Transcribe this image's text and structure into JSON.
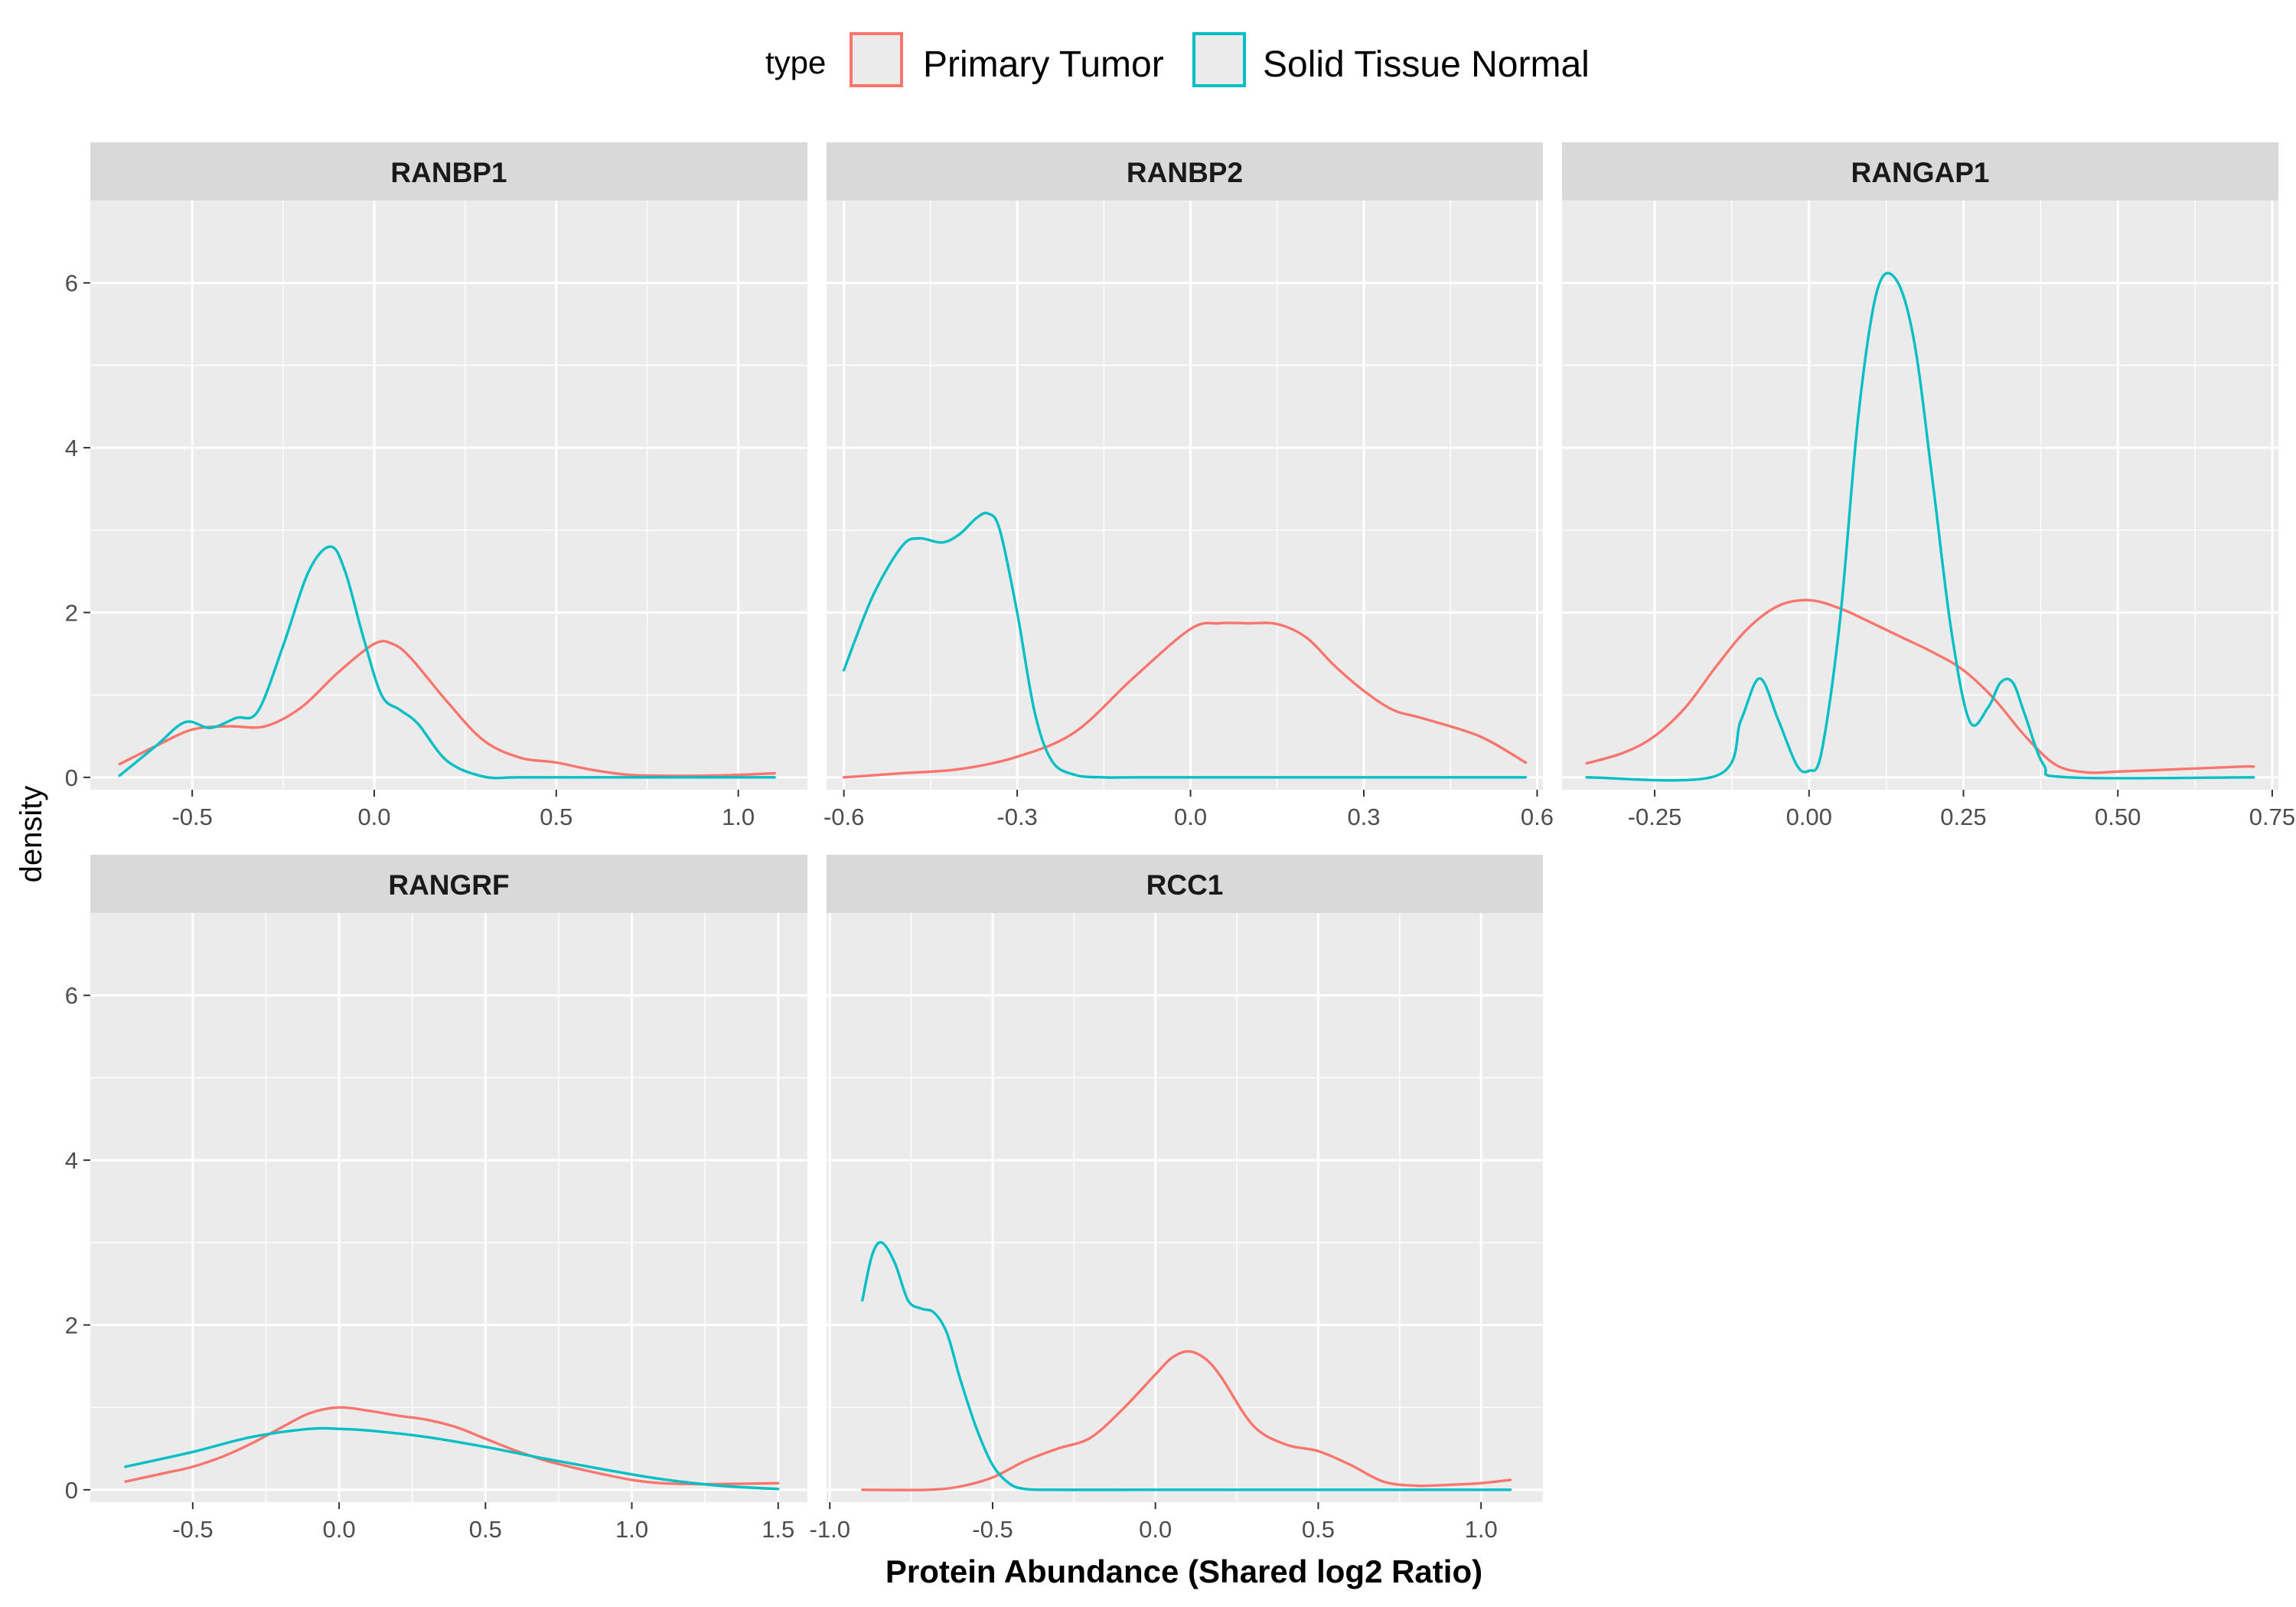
{
  "legend": {
    "title": "type",
    "items": [
      {
        "label": "Primary Tumor",
        "color": "#F8766D"
      },
      {
        "label": "Solid Tissue Normal",
        "color": "#00BFC4"
      }
    ]
  },
  "axes": {
    "xlabel": "Protein Abundance (Shared log2 Ratio)",
    "ylabel": "density"
  },
  "chart_data": {
    "type": "line",
    "subtype": "faceted density plot",
    "ylim": [
      -0.15,
      7.0
    ],
    "yticks": [
      0,
      2,
      4,
      6
    ],
    "grid": true,
    "legend_position": "top",
    "facets": [
      {
        "title": "RANBP1",
        "xlim": [
          -0.78,
          1.19
        ],
        "xticks": [
          -0.5,
          0.0,
          0.5,
          1.0
        ],
        "xtick_labels": [
          "-0.5",
          "0.0",
          "0.5",
          "1.0"
        ],
        "series": [
          {
            "name": "Primary Tumor",
            "x": [
              -0.7,
              -0.6,
              -0.5,
              -0.4,
              -0.3,
              -0.2,
              -0.1,
              0.0,
              0.05,
              0.1,
              0.2,
              0.3,
              0.4,
              0.5,
              0.6,
              0.7,
              0.8,
              0.9,
              1.0,
              1.1
            ],
            "y": [
              0.16,
              0.38,
              0.58,
              0.62,
              0.62,
              0.85,
              1.27,
              1.62,
              1.62,
              1.45,
              0.92,
              0.45,
              0.24,
              0.18,
              0.09,
              0.03,
              0.02,
              0.02,
              0.03,
              0.05
            ]
          },
          {
            "name": "Solid Tissue Normal",
            "x": [
              -0.7,
              -0.6,
              -0.52,
              -0.45,
              -0.38,
              -0.32,
              -0.25,
              -0.18,
              -0.12,
              -0.08,
              -0.03,
              0.02,
              0.07,
              0.12,
              0.2,
              0.3,
              0.4,
              0.6,
              0.8,
              1.1
            ],
            "y": [
              0.02,
              0.38,
              0.67,
              0.6,
              0.72,
              0.8,
              1.6,
              2.5,
              2.8,
              2.5,
              1.7,
              1.0,
              0.82,
              0.65,
              0.2,
              0.01,
              0.0,
              0.0,
              0.0,
              0.0
            ]
          }
        ]
      },
      {
        "title": "RANBP2",
        "xlim": [
          -0.63,
          0.61
        ],
        "xticks": [
          -0.6,
          -0.3,
          0.0,
          0.3,
          0.6
        ],
        "xtick_labels": [
          "-0.6",
          "-0.3",
          "0.0",
          "0.3",
          "0.6"
        ],
        "series": [
          {
            "name": "Primary Tumor",
            "x": [
              -0.6,
              -0.5,
              -0.4,
              -0.3,
              -0.2,
              -0.1,
              0.0,
              0.05,
              0.1,
              0.15,
              0.2,
              0.25,
              0.3,
              0.35,
              0.4,
              0.5,
              0.58
            ],
            "y": [
              0.0,
              0.05,
              0.1,
              0.25,
              0.55,
              1.2,
              1.8,
              1.87,
              1.87,
              1.86,
              1.7,
              1.35,
              1.05,
              0.82,
              0.72,
              0.5,
              0.18
            ]
          },
          {
            "name": "Solid Tissue Normal",
            "x": [
              -0.6,
              -0.55,
              -0.5,
              -0.47,
              -0.43,
              -0.4,
              -0.37,
              -0.35,
              -0.33,
              -0.3,
              -0.27,
              -0.24,
              -0.2,
              -0.15,
              -0.1,
              0.0,
              0.3,
              0.58
            ],
            "y": [
              1.3,
              2.2,
              2.8,
              2.9,
              2.85,
              2.95,
              3.15,
              3.2,
              3.0,
              2.0,
              0.8,
              0.2,
              0.03,
              0.0,
              0.0,
              0.0,
              0.0,
              0.0
            ]
          }
        ]
      },
      {
        "title": "RANGAP1",
        "xlim": [
          -0.4,
          0.76
        ],
        "xticks": [
          -0.25,
          0.0,
          0.25,
          0.5,
          0.75
        ],
        "xtick_labels": [
          "-0.25",
          "0.00",
          "0.25",
          "0.50",
          "0.75"
        ],
        "series": [
          {
            "name": "Primary Tumor",
            "x": [
              -0.36,
              -0.3,
              -0.25,
              -0.2,
              -0.15,
              -0.1,
              -0.05,
              0.0,
              0.05,
              0.1,
              0.15,
              0.2,
              0.25,
              0.3,
              0.35,
              0.4,
              0.45,
              0.5,
              0.6,
              0.7,
              0.72
            ],
            "y": [
              0.17,
              0.3,
              0.5,
              0.85,
              1.35,
              1.8,
              2.08,
              2.15,
              2.05,
              1.88,
              1.7,
              1.52,
              1.3,
              0.95,
              0.5,
              0.15,
              0.06,
              0.07,
              0.1,
              0.13,
              0.13
            ]
          },
          {
            "name": "Solid Tissue Normal",
            "x": [
              -0.36,
              -0.15,
              -0.11,
              -0.08,
              -0.05,
              -0.02,
              0.0,
              0.02,
              0.05,
              0.08,
              0.11,
              0.14,
              0.17,
              0.2,
              0.23,
              0.26,
              0.29,
              0.31,
              0.33,
              0.35,
              0.38,
              0.42,
              0.72
            ],
            "y": [
              0.0,
              0.02,
              0.7,
              1.2,
              0.7,
              0.15,
              0.08,
              0.3,
              1.9,
              4.4,
              5.9,
              6.05,
              5.3,
              3.6,
              1.8,
              0.68,
              0.85,
              1.15,
              1.15,
              0.75,
              0.15,
              0.0,
              0.0
            ]
          }
        ]
      },
      {
        "title": "RANGRF",
        "xlim": [
          -0.85,
          1.6
        ],
        "xticks": [
          -0.5,
          0.0,
          0.5,
          1.0,
          1.5
        ],
        "xtick_labels": [
          "-0.5",
          "0.0",
          "0.5",
          "1.0",
          "1.5"
        ],
        "series": [
          {
            "name": "Primary Tumor",
            "x": [
              -0.73,
              -0.6,
              -0.5,
              -0.4,
              -0.3,
              -0.2,
              -0.1,
              0.0,
              0.1,
              0.2,
              0.3,
              0.4,
              0.5,
              0.6,
              0.7,
              0.8,
              0.9,
              1.0,
              1.1,
              1.2,
              1.3,
              1.5
            ],
            "y": [
              0.1,
              0.2,
              0.28,
              0.4,
              0.56,
              0.75,
              0.93,
              1.0,
              0.96,
              0.9,
              0.85,
              0.76,
              0.62,
              0.48,
              0.36,
              0.27,
              0.19,
              0.12,
              0.08,
              0.07,
              0.07,
              0.08
            ]
          },
          {
            "name": "Solid Tissue Normal",
            "x": [
              -0.73,
              -0.5,
              -0.3,
              -0.1,
              0.0,
              0.1,
              0.3,
              0.5,
              0.7,
              0.9,
              1.1,
              1.3,
              1.5
            ],
            "y": [
              0.28,
              0.46,
              0.64,
              0.74,
              0.74,
              0.72,
              0.64,
              0.52,
              0.38,
              0.25,
              0.13,
              0.05,
              0.01
            ]
          }
        ]
      },
      {
        "title": "RCC1",
        "xlim": [
          -1.01,
          1.19
        ],
        "xticks": [
          -1.0,
          -0.5,
          0.0,
          0.5,
          1.0
        ],
        "xtick_labels": [
          "-1.0",
          "-0.5",
          "0.0",
          "0.5",
          "1.0"
        ],
        "series": [
          {
            "name": "Primary Tumor",
            "x": [
              -0.9,
              -0.7,
              -0.6,
              -0.5,
              -0.4,
              -0.3,
              -0.2,
              -0.1,
              0.0,
              0.05,
              0.1,
              0.15,
              0.2,
              0.3,
              0.4,
              0.5,
              0.6,
              0.7,
              0.8,
              0.9,
              1.0,
              1.09
            ],
            "y": [
              0.0,
              0.0,
              0.04,
              0.15,
              0.35,
              0.5,
              0.63,
              0.98,
              1.4,
              1.6,
              1.68,
              1.6,
              1.38,
              0.78,
              0.55,
              0.47,
              0.3,
              0.1,
              0.05,
              0.06,
              0.08,
              0.12
            ]
          },
          {
            "name": "Solid Tissue Normal",
            "x": [
              -0.9,
              -0.87,
              -0.84,
              -0.8,
              -0.76,
              -0.72,
              -0.68,
              -0.64,
              -0.6,
              -0.55,
              -0.5,
              -0.45,
              -0.4,
              -0.3,
              0.0,
              1.09
            ],
            "y": [
              2.3,
              2.85,
              3.0,
              2.75,
              2.3,
              2.2,
              2.15,
              1.9,
              1.35,
              0.75,
              0.3,
              0.08,
              0.01,
              0.0,
              0.0,
              0.0
            ]
          }
        ]
      }
    ]
  }
}
